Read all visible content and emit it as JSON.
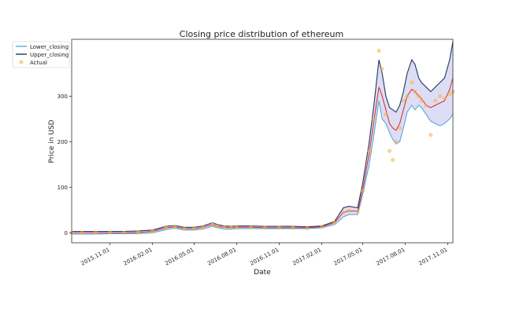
{
  "chart_data": {
    "type": "line",
    "title": "Closing price distribution of ethereum",
    "xlabel": "Date",
    "ylabel": "Price in USD",
    "x_tick_labels": [
      "2015.11.01",
      "2016.02.01",
      "2016.05.01",
      "2016.08.01",
      "2016.11.01",
      "2017.02.01",
      "2017.05.01",
      "2017.08.01",
      "2017.11.01"
    ],
    "y_tick_labels": [
      "0",
      "100",
      "200",
      "300"
    ],
    "ylim": [
      -22,
      425
    ],
    "colors": {
      "lower": "#5aa7db",
      "upper": "#1f3a5a",
      "middle": "#d62728",
      "band": "#d9d9f4",
      "actual": "#f5b041"
    },
    "legend": [
      {
        "label": "Lower_closing",
        "key": "lower"
      },
      {
        "label": "Upper_closing",
        "key": "upper"
      },
      {
        "label": "Actual",
        "key": "actual"
      }
    ],
    "x": [
      "2015.08.10",
      "2015.09.01",
      "2015.10.01",
      "2015.11.01",
      "2015.12.01",
      "2016.01.01",
      "2016.02.01",
      "2016.03.01",
      "2016.03.20",
      "2016.04.10",
      "2016.05.01",
      "2016.05.20",
      "2016.06.10",
      "2016.06.20",
      "2016.07.05",
      "2016.07.20",
      "2016.08.01",
      "2016.09.01",
      "2016.10.01",
      "2016.11.01",
      "2016.12.01",
      "2017.01.01",
      "2017.02.01",
      "2017.03.01",
      "2017.03.20",
      "2017.04.01",
      "2017.04.20",
      "2017.05.01",
      "2017.05.15",
      "2017.05.25",
      "2017.06.05",
      "2017.06.12",
      "2017.06.20",
      "2017.06.28",
      "2017.07.05",
      "2017.07.12",
      "2017.07.20",
      "2017.07.28",
      "2017.08.05",
      "2017.08.15",
      "2017.08.22",
      "2017.08.30",
      "2017.09.05",
      "2017.09.15",
      "2017.09.25",
      "2017.10.05",
      "2017.10.15",
      "2017.10.25",
      "2017.11.05",
      "2017.11.12"
    ],
    "series": [
      {
        "name": "Lower_closing",
        "values": [
          -3,
          -3,
          -3,
          -2,
          -2,
          -2,
          0,
          7,
          10,
          6,
          6,
          8,
          14,
          11,
          8,
          8,
          9,
          9,
          9,
          9,
          9,
          9,
          11,
          18,
          35,
          40,
          40,
          85,
          150,
          215,
          290,
          250,
          240,
          220,
          205,
          195,
          200,
          230,
          265,
          280,
          270,
          280,
          275,
          260,
          245,
          240,
          235,
          240,
          250,
          260
        ]
      },
      {
        "name": "Upper_closing",
        "values": [
          3,
          3,
          3,
          3,
          3,
          4,
          6,
          14,
          16,
          12,
          12,
          15,
          22,
          18,
          15,
          14,
          15,
          15,
          14,
          14,
          14,
          13,
          15,
          25,
          55,
          58,
          55,
          110,
          200,
          280,
          380,
          350,
          300,
          275,
          270,
          265,
          280,
          310,
          350,
          380,
          370,
          340,
          330,
          320,
          310,
          320,
          330,
          340,
          380,
          420
        ]
      },
      {
        "name": "Middle",
        "values": [
          0,
          0,
          0,
          0,
          0,
          1,
          3,
          11,
          13,
          9,
          9,
          12,
          18,
          14,
          12,
          11,
          12,
          12,
          11,
          11,
          11,
          11,
          13,
          22,
          45,
          48,
          47,
          95,
          175,
          245,
          320,
          300,
          270,
          240,
          230,
          225,
          240,
          270,
          300,
          315,
          310,
          300,
          295,
          280,
          275,
          280,
          285,
          290,
          315,
          340
        ]
      },
      {
        "name": "Actual",
        "values": [
          0,
          0,
          1,
          1,
          0,
          1,
          3,
          12,
          13,
          9,
          10,
          12,
          19,
          14,
          12,
          11,
          12,
          12,
          11,
          11,
          11,
          10,
          13,
          22,
          45,
          48,
          47,
          92,
          180,
          250,
          400,
          360,
          260,
          180,
          160,
          200,
          230,
          290,
          300,
          330,
          310,
          300,
          290,
          280,
          215,
          290,
          300,
          295,
          305,
          310
        ]
      }
    ]
  }
}
